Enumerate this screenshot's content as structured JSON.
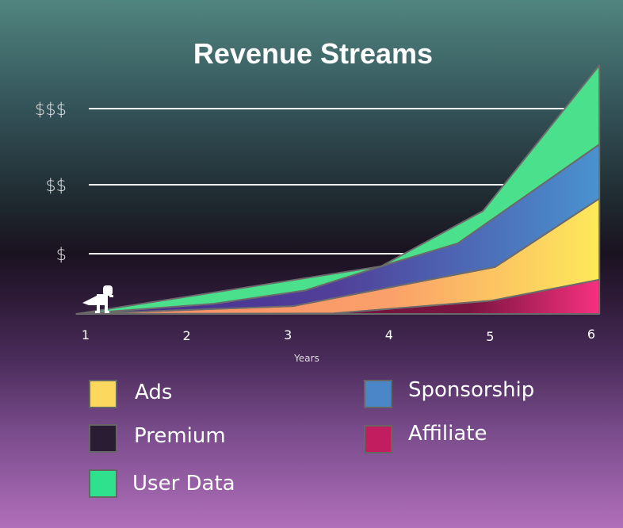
{
  "chart_data": {
    "type": "area",
    "stacked": true,
    "title": "Revenue Streams",
    "xlabel": "Years",
    "ylabel": "",
    "x_ticks": [
      "1",
      "2",
      "3",
      "4",
      "5",
      "6"
    ],
    "y_ticks": [
      {
        "value": 1,
        "label": "$"
      },
      {
        "value": 2,
        "label": "$$"
      },
      {
        "value": 3,
        "label": "$$$"
      }
    ],
    "grid": "horizontal",
    "legend_placement": "bottom",
    "note_points_are_cumulative_tops": true,
    "series": [
      {
        "name": "Affiliate",
        "color": "#c21d5e",
        "points": [
          [
            0.91,
            0
          ],
          [
            3.45,
            0.01
          ],
          [
            5.01,
            0.22
          ],
          [
            6.08,
            0.57
          ]
        ]
      },
      {
        "name": "Ads",
        "color": "#fcd95e",
        "points": [
          [
            0.91,
            0
          ],
          [
            3.05,
            0.13
          ],
          [
            5.05,
            0.78
          ],
          [
            6.08,
            1.8
          ]
        ]
      },
      {
        "name": "Sponsorship",
        "color": "#4a86c8",
        "points": [
          [
            0.91,
            0
          ],
          [
            2.27,
            0.17
          ],
          [
            3.17,
            0.39
          ],
          [
            3.92,
            0.79
          ],
          [
            4.68,
            1.15
          ],
          [
            6.08,
            2.53
          ]
        ]
      },
      {
        "name": "User Data",
        "color": "#2fe08c",
        "points": [
          [
            0.91,
            0
          ],
          [
            3.92,
            0.79
          ],
          [
            4.93,
            1.62
          ],
          [
            6.08,
            3.57
          ]
        ]
      },
      {
        "name": "Premium",
        "color": "#2a1d33",
        "points": []
      }
    ]
  },
  "legend": [
    {
      "label": "Ads",
      "color": "#fcd95e"
    },
    {
      "label": "Sponsorship",
      "color": "#4a86c8"
    },
    {
      "label": "Premium",
      "color": "#2a1d33"
    },
    {
      "label": "Affiliate",
      "color": "#c21d5e"
    },
    {
      "label": "User Data",
      "color": "#2fe08c"
    }
  ],
  "mascot_icon": "dinosaur-icon"
}
